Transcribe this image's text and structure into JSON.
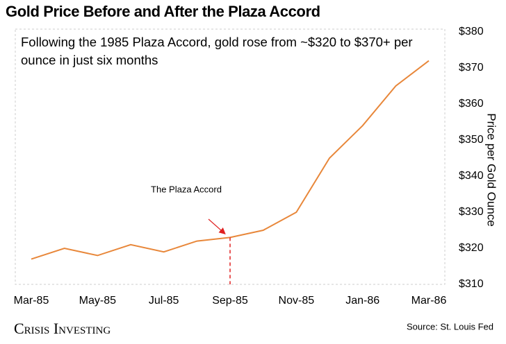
{
  "chart_data": {
    "type": "line",
    "title": "Gold Price Before and After the Plaza Accord",
    "subtitle": "Following the 1985 Plaza Accord, gold rose from ~$320 to $370+ per ounce in just six months",
    "y_label": "Price per Gold Ounce",
    "annotation": "The Plaza Accord",
    "source": "Source: St. Louis Fed",
    "logo": "Crisis Investing",
    "categories": [
      "Mar-85",
      null,
      "May-85",
      null,
      "Jul-85",
      null,
      "Sep-85",
      null,
      "Nov-85",
      null,
      "Jan-86",
      null,
      "Mar-86"
    ],
    "values": [
      317,
      320,
      318,
      321,
      319,
      322,
      323,
      325,
      330,
      345,
      354,
      365,
      372
    ],
    "color": "#e8873a",
    "ylim": [
      310,
      380
    ],
    "yticks": [
      {
        "value": 310,
        "label": "$310"
      },
      {
        "value": 320,
        "label": "$320"
      },
      {
        "value": 330,
        "label": "$330"
      },
      {
        "value": 340,
        "label": "$340"
      },
      {
        "value": 350,
        "label": "$350"
      },
      {
        "value": 360,
        "label": "$360"
      },
      {
        "value": 370,
        "label": "$370"
      },
      {
        "value": 380,
        "label": "$380"
      }
    ],
    "y_axis_side": "right"
  }
}
